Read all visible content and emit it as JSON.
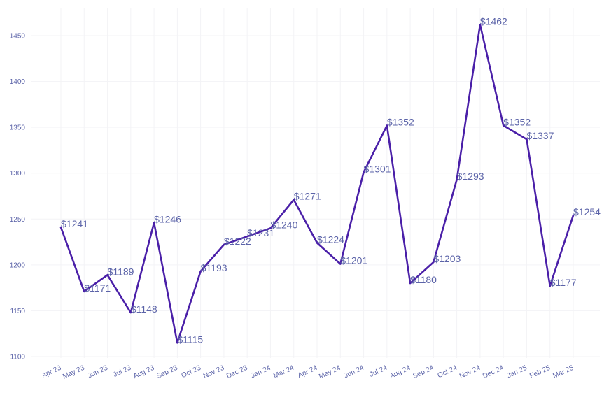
{
  "chart_data": {
    "type": "line",
    "title": "",
    "xlabel": "",
    "ylabel": "",
    "categories": [
      "Apr 23",
      "May 23",
      "Jun 23",
      "Jul 23",
      "Aug 23",
      "Sep 23",
      "Oct 23",
      "Nov 23",
      "Dec 23",
      "Jan 24",
      "Mar 24",
      "Apr 24",
      "May 24",
      "Jun 24",
      "Jul 24",
      "Aug 24",
      "Sep 24",
      "Oct 24",
      "Nov 24",
      "Dec 24",
      "Jan 25",
      "Feb 25",
      "Mar 25"
    ],
    "series": [
      {
        "values": [
          1241,
          1171,
          1189,
          1148,
          1246,
          1115,
          1193,
          1222,
          1231,
          1240,
          1271,
          1224,
          1201,
          1301,
          1352,
          1180,
          1203,
          1293,
          1462,
          1352,
          1337,
          1177,
          1254
        ],
        "labels": [
          "$1241",
          "$1171",
          "$1189",
          "$1148",
          "$1246",
          "$1115",
          "$1193",
          "$1222",
          "$1231",
          "$1240",
          "$1271",
          "$1224",
          "$1201",
          "$1301",
          "$1352",
          "$1180",
          "$1203",
          "$1293",
          "$1462",
          "$1352",
          "$1337",
          "$1177",
          "$1254"
        ]
      }
    ],
    "y_ticks": [
      1100,
      1150,
      1200,
      1250,
      1300,
      1350,
      1400,
      1450
    ],
    "ylim": [
      1100,
      1465
    ],
    "grid": true,
    "legend": "none",
    "colors": {
      "line": "#4a1fa8",
      "text": "#5b63a8",
      "grid": "#f3f3f6"
    }
  }
}
